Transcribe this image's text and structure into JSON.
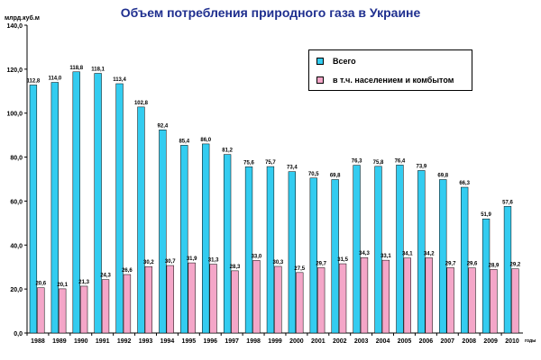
{
  "chart_data": {
    "type": "bar",
    "title": "Объем потребления природного газа в Украине",
    "ylabel": "млрд.куб.м",
    "xlabel": "годы",
    "ylim": [
      0,
      140
    ],
    "ytick_labels": [
      "0,0",
      "20,0",
      "40,0",
      "60,0",
      "80,0",
      "100,0",
      "120,0",
      "140,0"
    ],
    "grid": false,
    "legend_position": "top-right",
    "categories": [
      "1988",
      "1989",
      "1990",
      "1991",
      "1992",
      "1993",
      "1994",
      "1995",
      "1996",
      "1997",
      "1998",
      "1999",
      "2000",
      "2001",
      "2002",
      "2003",
      "2004",
      "2005",
      "2006",
      "2007",
      "2008",
      "2009",
      "2010"
    ],
    "series": [
      {
        "name": "Всего",
        "color": "#33ccf0",
        "values": [
          112.8,
          114.0,
          118.8,
          118.1,
          113.4,
          102.8,
          92.4,
          85.4,
          86.0,
          81.2,
          75.6,
          75.7,
          73.4,
          70.5,
          69.8,
          76.3,
          75.8,
          76.4,
          73.9,
          69.8,
          66.3,
          51.9,
          57.6
        ],
        "labels": [
          "112,8",
          "114,0",
          "118,8",
          "118,1",
          "113,4",
          "102,8",
          "92,4",
          "85,4",
          "86,0",
          "81,2",
          "75,6",
          "75,7",
          "73,4",
          "70,5",
          "69,8",
          "76,3",
          "75,8",
          "76,4",
          "73,9",
          "69,8",
          "66,3",
          "51,9",
          "57,6"
        ]
      },
      {
        "name": "в т.ч. населением и комбытом",
        "color": "#f4a6c8",
        "values": [
          20.6,
          20.1,
          21.3,
          24.3,
          26.6,
          30.2,
          30.7,
          31.9,
          31.3,
          28.3,
          33.0,
          30.3,
          27.5,
          29.7,
          31.5,
          34.3,
          33.1,
          34.1,
          34.2,
          29.7,
          29.6,
          28.9,
          29.2
        ],
        "labels": [
          "20,6",
          "20,1",
          "21,3",
          "24,3",
          "26,6",
          "30,2",
          "30,7",
          "31,9",
          "31,3",
          "28,3",
          "33,0",
          "30,3",
          "27,5",
          "29,7",
          "31,5",
          "34,3",
          "33,1",
          "34,1",
          "34,2",
          "29,7",
          "29,6",
          "28,9",
          "29,2"
        ]
      }
    ]
  }
}
